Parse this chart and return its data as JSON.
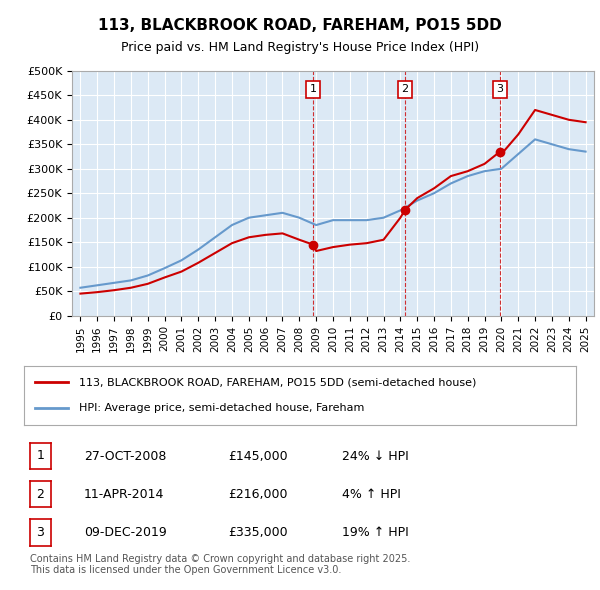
{
  "title": "113, BLACKBROOK ROAD, FAREHAM, PO15 5DD",
  "subtitle": "Price paid vs. HM Land Registry's House Price Index (HPI)",
  "bg_color": "#dce9f5",
  "plot_bg_color": "#dce9f5",
  "ylim": [
    0,
    500000
  ],
  "yticks": [
    0,
    50000,
    100000,
    150000,
    200000,
    250000,
    300000,
    350000,
    400000,
    450000,
    500000
  ],
  "ytick_labels": [
    "£0",
    "£50K",
    "£100K",
    "£150K",
    "£200K",
    "£250K",
    "£300K",
    "£350K",
    "£400K",
    "£450K",
    "£500K"
  ],
  "xlim_start": 1994.5,
  "xlim_end": 2025.5,
  "xtick_years": [
    1995,
    1996,
    1997,
    1998,
    1999,
    2000,
    2001,
    2002,
    2003,
    2004,
    2005,
    2006,
    2007,
    2008,
    2009,
    2010,
    2011,
    2012,
    2013,
    2014,
    2015,
    2016,
    2017,
    2018,
    2019,
    2020,
    2021,
    2022,
    2023,
    2024,
    2025
  ],
  "red_line_color": "#cc0000",
  "blue_line_color": "#6699cc",
  "sale_dates": [
    2008.82,
    2014.28,
    2019.92
  ],
  "sale_prices": [
    145000,
    216000,
    335000
  ],
  "sale_labels": [
    "1",
    "2",
    "3"
  ],
  "sale_marker_color": "#cc0000",
  "dashed_line_color": "#cc0000",
  "legend_label_red": "113, BLACKBROOK ROAD, FAREHAM, PO15 5DD (semi-detached house)",
  "legend_label_blue": "HPI: Average price, semi-detached house, Fareham",
  "table_rows": [
    [
      "1",
      "27-OCT-2008",
      "£145,000",
      "24% ↓ HPI"
    ],
    [
      "2",
      "11-APR-2014",
      "£216,000",
      "4% ↑ HPI"
    ],
    [
      "3",
      "09-DEC-2019",
      "£335,000",
      "19% ↑ HPI"
    ]
  ],
  "footer": "Contains HM Land Registry data © Crown copyright and database right 2025.\nThis data is licensed under the Open Government Licence v3.0.",
  "hpi_years": [
    1995,
    1996,
    1997,
    1998,
    1999,
    2000,
    2001,
    2002,
    2003,
    2004,
    2005,
    2006,
    2007,
    2008,
    2009,
    2010,
    2011,
    2012,
    2013,
    2014,
    2015,
    2016,
    2017,
    2018,
    2019,
    2020,
    2021,
    2022,
    2023,
    2024,
    2025
  ],
  "hpi_values": [
    57000,
    62000,
    67000,
    72000,
    82000,
    97000,
    113000,
    135000,
    160000,
    185000,
    200000,
    205000,
    210000,
    200000,
    185000,
    195000,
    195000,
    195000,
    200000,
    215000,
    235000,
    250000,
    270000,
    285000,
    295000,
    300000,
    330000,
    360000,
    350000,
    340000,
    335000
  ],
  "red_years": [
    1995,
    1996,
    1997,
    1998,
    1999,
    2000,
    2001,
    2002,
    2003,
    2004,
    2005,
    2006,
    2007,
    2008,
    2008.82,
    2009,
    2010,
    2011,
    2012,
    2013,
    2014,
    2014.28,
    2015,
    2016,
    2017,
    2018,
    2019,
    2019.92,
    2020,
    2021,
    2022,
    2023,
    2024,
    2025
  ],
  "red_values": [
    45000,
    48000,
    52000,
    57000,
    65000,
    78000,
    90000,
    108000,
    128000,
    148000,
    160000,
    165000,
    168000,
    155000,
    145000,
    132000,
    140000,
    145000,
    148000,
    155000,
    200000,
    216000,
    240000,
    260000,
    285000,
    295000,
    310000,
    335000,
    330000,
    370000,
    420000,
    410000,
    400000,
    395000
  ]
}
